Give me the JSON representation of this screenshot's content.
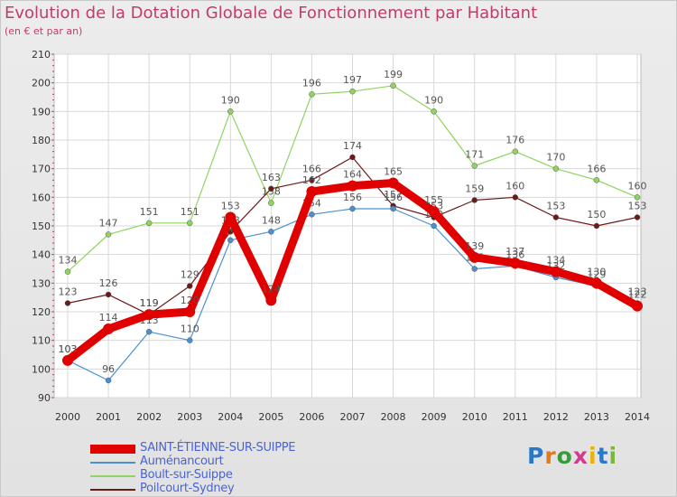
{
  "title": "Evolution de la Dotation Globale de Fonctionnement par Habitant",
  "subtitle": "(en € et par an)",
  "logo": {
    "text": "Proxiti",
    "letter_colors": [
      "#2b77c8",
      "#e07a1f",
      "#3a9b3a",
      "#d23b8c",
      "#e8b400",
      "#2b77c8",
      "#7ab83a"
    ]
  },
  "chart_data": {
    "type": "line",
    "title": "Evolution de la Dotation Globale de Fonctionnement par Habitant",
    "subtitle": "(en € et par an)",
    "x": [
      2000,
      2001,
      2002,
      2003,
      2004,
      2005,
      2006,
      2007,
      2008,
      2009,
      2010,
      2011,
      2012,
      2013,
      2014
    ],
    "ylim": [
      90,
      210
    ],
    "yticks": [
      90,
      100,
      110,
      120,
      130,
      140,
      150,
      160,
      170,
      180,
      190,
      200,
      210
    ],
    "grid": true,
    "legend_position": "bottom-left",
    "series": [
      {
        "name": "SAINT-ÉTIENNE-SUR-SUIPPE",
        "color": "#e00000",
        "values": [
          103,
          114,
          119,
          120,
          153,
          124,
          162,
          164,
          165,
          155,
          139,
          137,
          134,
          130,
          122
        ]
      },
      {
        "name": "Auménancourt",
        "color": "#4a90d0",
        "values": [
          103,
          96,
          113,
          110,
          145,
          148,
          154,
          156,
          156,
          150,
          135,
          136,
          132,
          129,
          123
        ]
      },
      {
        "name": "Boult-sur-Suippe",
        "color": "#8fd460",
        "values": [
          134,
          147,
          151,
          151,
          190,
          158,
          196,
          197,
          199,
          190,
          171,
          176,
          170,
          166,
          160
        ]
      },
      {
        "name": "Poilcourt-Sydney",
        "color": "#6b1a1a",
        "values": [
          123,
          126,
          119,
          129,
          148,
          163,
          166,
          174,
          157,
          153,
          159,
          160,
          153,
          150,
          153
        ]
      }
    ]
  }
}
